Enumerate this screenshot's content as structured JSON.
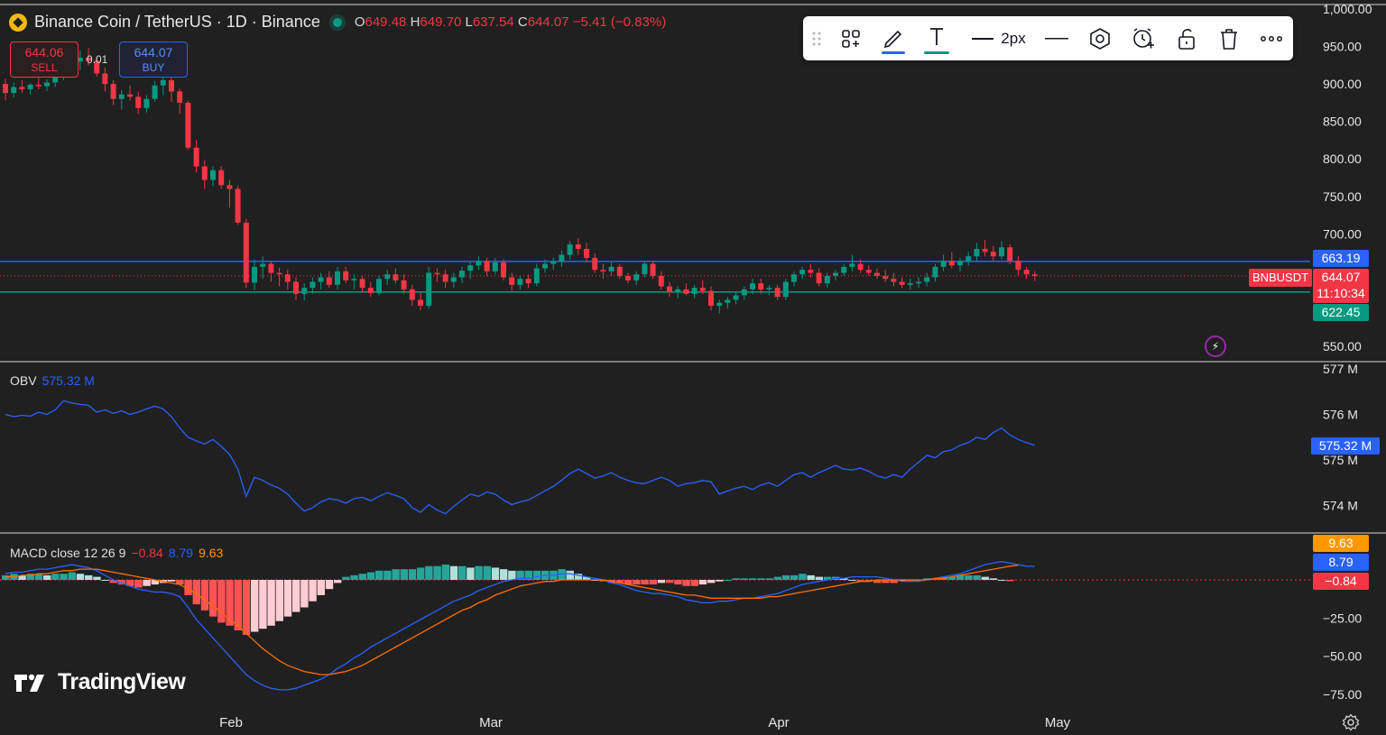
{
  "header": {
    "title": "Binance Coin / TetherUS · 1D · Binance",
    "ohlc": [
      {
        "k": "O",
        "v": "649.48"
      },
      {
        "k": "H",
        "v": "649.70"
      },
      {
        "k": "L",
        "v": "637.54"
      },
      {
        "k": "C",
        "v": "644.07"
      }
    ],
    "change": "−5.41 (−0.83%)"
  },
  "trade": {
    "sell_price": "644.06",
    "sell_label": "SELL",
    "buy_price": "644.07",
    "buy_label": "BUY",
    "spread": "0.01"
  },
  "toolbar": {
    "width_label": "2px",
    "icons": [
      "drag-handle-icon",
      "object-tree-icon",
      "pencil-icon",
      "text-icon",
      "line-width-icon",
      "line-style-icon",
      "hexagon-icon",
      "alert-clock-icon",
      "unlock-icon",
      "trash-icon",
      "more-icon"
    ],
    "pencil_underline": "#2962ff",
    "text_underline": "#089981"
  },
  "colors": {
    "background": "#202020",
    "up": "#089981",
    "down": "#f23645",
    "obv": "#2962ff",
    "macd": "#2962ff",
    "signal": "#ff6d00",
    "resistance": "#2962ff",
    "support": "#089981"
  },
  "indicators": {
    "obv_label": "OBV",
    "obv_value": "575.32 M",
    "macd_label": "MACD close 12 26 9",
    "macd_hist": "−0.84",
    "macd_line": "8.79",
    "macd_signal": "9.63"
  },
  "price_tags": {
    "resistance": "663.19",
    "last": "644.07",
    "countdown": "11:10:34",
    "support": "622.45",
    "symbol": "BNBUSDT",
    "obv_last": "575.32 M",
    "macd_signal": "9.63",
    "macd_line": "8.79",
    "macd_hist": "−0.84"
  },
  "branding": "TradingView",
  "chart_data": {
    "type": "candlestick",
    "xlabels": [
      "Feb",
      "Mar",
      "Apr",
      "May"
    ],
    "price_axis": {
      "ticks": [
        "1,000.00",
        "950.00",
        "900.00",
        "850.00",
        "800.00",
        "750.00",
        "700.00",
        "550.00"
      ],
      "ylim": [
        550,
        1000
      ]
    },
    "obv_axis": {
      "ticks": [
        "577 M",
        "576 M",
        "575 M",
        "574 M"
      ]
    },
    "macd_axis": {
      "ticks": [
        "−25.00",
        "−50.00",
        "−75.00"
      ]
    },
    "horizontal_lines": [
      {
        "value": 663.19,
        "color": "#2962ff"
      },
      {
        "value": 622.45,
        "color": "#089981"
      }
    ],
    "candles": [
      [
        900,
        907,
        878,
        888
      ],
      [
        888,
        902,
        882,
        896
      ],
      [
        896,
        905,
        888,
        893
      ],
      [
        893,
        901,
        886,
        899
      ],
      [
        899,
        908,
        893,
        897
      ],
      [
        897,
        906,
        890,
        902
      ],
      [
        902,
        918,
        896,
        912
      ],
      [
        912,
        928,
        905,
        921
      ],
      [
        921,
        938,
        915,
        930
      ],
      [
        930,
        945,
        918,
        935
      ],
      [
        935,
        948,
        925,
        931
      ],
      [
        931,
        936,
        910,
        914
      ],
      [
        914,
        922,
        890,
        900
      ],
      [
        900,
        905,
        872,
        880
      ],
      [
        880,
        892,
        866,
        886
      ],
      [
        886,
        898,
        878,
        883
      ],
      [
        883,
        890,
        860,
        868
      ],
      [
        868,
        885,
        862,
        880
      ],
      [
        880,
        904,
        876,
        898
      ],
      [
        898,
        914,
        885,
        905
      ],
      [
        905,
        912,
        876,
        890
      ],
      [
        890,
        894,
        860,
        875
      ],
      [
        875,
        878,
        812,
        815
      ],
      [
        815,
        825,
        782,
        790
      ],
      [
        790,
        798,
        760,
        772
      ],
      [
        772,
        790,
        764,
        785
      ],
      [
        785,
        790,
        760,
        765
      ],
      [
        765,
        772,
        735,
        760
      ],
      [
        760,
        764,
        712,
        715
      ],
      [
        715,
        720,
        628,
        635
      ],
      [
        635,
        666,
        625,
        656
      ],
      [
        656,
        670,
        640,
        660
      ],
      [
        660,
        664,
        636,
        648
      ],
      [
        648,
        655,
        630,
        646
      ],
      [
        646,
        652,
        626,
        636
      ],
      [
        636,
        642,
        612,
        620
      ],
      [
        620,
        634,
        611,
        628
      ],
      [
        628,
        642,
        620,
        636
      ],
      [
        636,
        648,
        626,
        642
      ],
      [
        642,
        650,
        628,
        632
      ],
      [
        632,
        656,
        626,
        650
      ],
      [
        650,
        656,
        634,
        638
      ],
      [
        638,
        646,
        626,
        640
      ],
      [
        640,
        644,
        622,
        628
      ],
      [
        628,
        636,
        616,
        621
      ],
      [
        621,
        644,
        618,
        640
      ],
      [
        640,
        652,
        632,
        646
      ],
      [
        646,
        654,
        634,
        638
      ],
      [
        638,
        646,
        620,
        626
      ],
      [
        626,
        632,
        604,
        612
      ],
      [
        612,
        622,
        598,
        604
      ],
      [
        604,
        656,
        600,
        648
      ],
      [
        648,
        654,
        636,
        646
      ],
      [
        646,
        652,
        628,
        636
      ],
      [
        636,
        648,
        628,
        642
      ],
      [
        642,
        656,
        634,
        651
      ],
      [
        651,
        662,
        640,
        658
      ],
      [
        658,
        670,
        652,
        664
      ],
      [
        664,
        668,
        644,
        650
      ],
      [
        650,
        668,
        646,
        662
      ],
      [
        662,
        666,
        638,
        642
      ],
      [
        642,
        648,
        624,
        632
      ],
      [
        632,
        644,
        626,
        640
      ],
      [
        640,
        646,
        628,
        634
      ],
      [
        634,
        660,
        630,
        654
      ],
      [
        654,
        666,
        648,
        660
      ],
      [
        660,
        668,
        652,
        663
      ],
      [
        663,
        678,
        656,
        672
      ],
      [
        672,
        690,
        666,
        686
      ],
      [
        686,
        694,
        672,
        680
      ],
      [
        680,
        688,
        662,
        668
      ],
      [
        668,
        674,
        648,
        652
      ],
      [
        652,
        660,
        640,
        650
      ],
      [
        650,
        662,
        644,
        656
      ],
      [
        656,
        660,
        640,
        644
      ],
      [
        644,
        648,
        634,
        638
      ],
      [
        638,
        650,
        632,
        646
      ],
      [
        646,
        664,
        642,
        660
      ],
      [
        660,
        664,
        640,
        644
      ],
      [
        644,
        650,
        626,
        630
      ],
      [
        630,
        636,
        616,
        622
      ],
      [
        622,
        630,
        614,
        626
      ],
      [
        626,
        634,
        618,
        620
      ],
      [
        620,
        632,
        614,
        628
      ],
      [
        628,
        638,
        620,
        624
      ],
      [
        624,
        630,
        598,
        604
      ],
      [
        604,
        612,
        594,
        608
      ],
      [
        608,
        616,
        600,
        612
      ],
      [
        612,
        622,
        606,
        618
      ],
      [
        618,
        630,
        612,
        626
      ],
      [
        626,
        640,
        620,
        634
      ],
      [
        634,
        640,
        620,
        626
      ],
      [
        626,
        632,
        618,
        628
      ],
      [
        628,
        632,
        612,
        616
      ],
      [
        616,
        640,
        612,
        636
      ],
      [
        636,
        650,
        630,
        646
      ],
      [
        646,
        656,
        640,
        652
      ],
      [
        652,
        660,
        642,
        648
      ],
      [
        648,
        654,
        630,
        634
      ],
      [
        634,
        648,
        628,
        644
      ],
      [
        644,
        652,
        638,
        648
      ],
      [
        648,
        660,
        644,
        656
      ],
      [
        656,
        672,
        650,
        660
      ],
      [
        660,
        666,
        648,
        652
      ],
      [
        652,
        658,
        644,
        648
      ],
      [
        648,
        654,
        640,
        644
      ],
      [
        644,
        652,
        636,
        640
      ],
      [
        640,
        648,
        630,
        636
      ],
      [
        636,
        642,
        628,
        632
      ],
      [
        632,
        640,
        626,
        634
      ],
      [
        634,
        642,
        628,
        636
      ],
      [
        636,
        648,
        630,
        642
      ],
      [
        642,
        660,
        636,
        656
      ],
      [
        656,
        672,
        650,
        664
      ],
      [
        664,
        676,
        654,
        658
      ],
      [
        658,
        668,
        650,
        664
      ],
      [
        664,
        676,
        658,
        670
      ],
      [
        670,
        688,
        664,
        680
      ],
      [
        680,
        692,
        670,
        676
      ],
      [
        676,
        684,
        664,
        670
      ],
      [
        670,
        690,
        666,
        682
      ],
      [
        682,
        686,
        660,
        664
      ],
      [
        664,
        670,
        644,
        652
      ],
      [
        652,
        656,
        640,
        646
      ],
      [
        646,
        650,
        637,
        644
      ]
    ],
    "obv": [
      576.0,
      575.95,
      575.98,
      575.96,
      576.05,
      576.0,
      576.1,
      576.3,
      576.25,
      576.22,
      576.2,
      576.05,
      576.1,
      576.02,
      576.08,
      576.0,
      576.05,
      576.12,
      576.18,
      576.12,
      575.95,
      575.7,
      575.5,
      575.42,
      575.35,
      575.45,
      575.3,
      575.12,
      574.8,
      574.2,
      574.62,
      574.55,
      574.45,
      574.38,
      574.25,
      574.05,
      573.88,
      573.95,
      574.08,
      574.15,
      574.12,
      574.05,
      574.15,
      574.18,
      574.1,
      574.2,
      574.28,
      574.22,
      574.15,
      573.95,
      573.85,
      574.02,
      573.9,
      573.82,
      573.98,
      574.12,
      574.25,
      574.2,
      574.3,
      574.25,
      574.12,
      574.02,
      574.08,
      574.12,
      574.22,
      574.32,
      574.42,
      574.55,
      574.7,
      574.8,
      574.7,
      574.6,
      574.65,
      574.72,
      574.62,
      574.55,
      574.5,
      574.48,
      574.55,
      574.62,
      574.55,
      574.42,
      574.48,
      574.5,
      574.55,
      574.52,
      574.25,
      574.32,
      574.38,
      574.42,
      574.35,
      574.45,
      574.5,
      574.42,
      574.55,
      574.68,
      574.72,
      574.62,
      574.72,
      574.8,
      574.88,
      574.8,
      574.78,
      574.82,
      574.75,
      574.65,
      574.6,
      574.68,
      574.62,
      574.8,
      574.95,
      575.1,
      575.05,
      575.18,
      575.22,
      575.32,
      575.38,
      575.5,
      575.45,
      575.6,
      575.7,
      575.55,
      575.45,
      575.38,
      575.32
    ],
    "macd_hist": [
      3,
      4,
      3,
      4,
      4,
      3,
      4,
      4,
      5,
      4,
      3,
      2,
      0,
      -2,
      -3,
      -4,
      -5,
      -4,
      -3,
      -2,
      -1,
      -3,
      -10,
      -16,
      -20,
      -24,
      -28,
      -30,
      -33,
      -36,
      -34,
      -32,
      -30,
      -27,
      -24,
      -21,
      -18,
      -14,
      -10,
      -6,
      -2,
      2,
      3,
      4,
      5,
      6,
      6,
      7,
      7,
      7,
      8,
      9,
      9,
      10,
      9,
      9,
      8,
      9,
      9,
      8,
      7,
      6,
      6,
      6,
      6,
      6,
      6,
      7,
      6,
      4,
      2,
      0,
      -1,
      -2,
      -2,
      -3,
      -3,
      -3,
      -3,
      -2,
      -2,
      -3,
      -4,
      -4,
      -3,
      -2,
      -1,
      0,
      1,
      1,
      1,
      1,
      1,
      2,
      3,
      3,
      4,
      3,
      2,
      2,
      2,
      1,
      0,
      -1,
      -1,
      -2,
      -2,
      -2,
      -1,
      -1,
      0,
      1,
      1,
      2,
      2,
      3,
      3,
      3,
      2,
      1,
      0,
      -0.84
    ],
    "macd_line": [
      4,
      5,
      5,
      6,
      7,
      7,
      8,
      9,
      10,
      9,
      8,
      6,
      3,
      0,
      -2,
      -4,
      -6,
      -7,
      -8,
      -8,
      -9,
      -11,
      -18,
      -26,
      -32,
      -38,
      -44,
      -50,
      -56,
      -62,
      -66,
      -69,
      -71,
      -72,
      -72,
      -71,
      -69,
      -67,
      -65,
      -62,
      -58,
      -55,
      -51,
      -48,
      -44,
      -41,
      -38,
      -35,
      -32,
      -29,
      -26,
      -23,
      -20,
      -17,
      -14,
      -12,
      -10,
      -7,
      -5,
      -3,
      -1,
      0,
      1,
      1,
      2,
      3,
      3,
      4,
      4,
      3,
      2,
      1,
      0,
      -2,
      -3,
      -5,
      -7,
      -8,
      -9,
      -9,
      -10,
      -11,
      -13,
      -14,
      -15,
      -15,
      -14,
      -14,
      -13,
      -12,
      -12,
      -11,
      -10,
      -9,
      -7,
      -5,
      -3,
      -2,
      -1,
      0,
      1,
      1,
      2,
      2,
      2,
      2,
      1,
      0,
      -1,
      -1,
      -1,
      0,
      1,
      2,
      3,
      4,
      6,
      8,
      10,
      11,
      12,
      11,
      10,
      9,
      8.79
    ],
    "macd_signal": [
      2,
      2,
      3,
      3,
      4,
      4,
      5,
      6,
      6,
      7,
      7,
      7,
      6,
      5,
      4,
      3,
      2,
      1,
      0,
      -1,
      -2,
      -3,
      -6,
      -9,
      -13,
      -17,
      -21,
      -26,
      -30,
      -35,
      -40,
      -45,
      -49,
      -53,
      -56,
      -58,
      -60,
      -61,
      -62,
      -62,
      -61,
      -60,
      -58,
      -56,
      -53,
      -50,
      -47,
      -44,
      -41,
      -38,
      -35,
      -32,
      -29,
      -26,
      -23,
      -20,
      -18,
      -15,
      -13,
      -10,
      -8,
      -6,
      -4,
      -3,
      -2,
      -1,
      -1,
      0,
      0,
      0,
      0,
      0,
      0,
      -1,
      -2,
      -3,
      -4,
      -5,
      -6,
      -7,
      -8,
      -9,
      -10,
      -10,
      -11,
      -12,
      -12,
      -12,
      -12,
      -12,
      -12,
      -12,
      -11,
      -11,
      -10,
      -9,
      -8,
      -7,
      -6,
      -5,
      -4,
      -3,
      -2,
      -1,
      -1,
      0,
      0,
      0,
      0,
      0,
      0,
      0,
      1,
      1,
      2,
      3,
      4,
      5,
      6,
      7,
      8,
      9,
      9.63
    ],
    "macd_axis_range": [
      -85,
      12
    ]
  }
}
